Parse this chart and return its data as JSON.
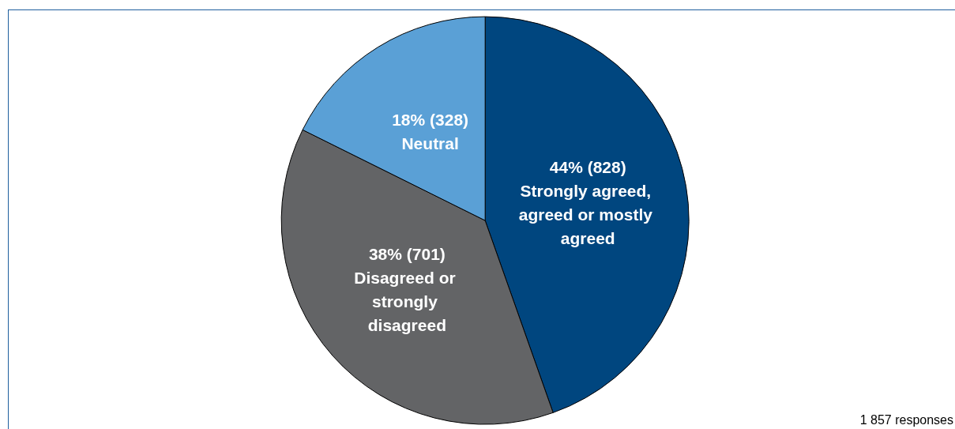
{
  "chart_data": {
    "type": "pie",
    "categories": [
      "Strongly agreed, agreed or mostly agreed",
      "Disagreed or strongly disagreed",
      "Neutral"
    ],
    "values": [
      828,
      701,
      328
    ],
    "value_labels": [
      "44% (828)",
      "38% (701)",
      "18% (328)"
    ],
    "colors": [
      "#00467f",
      "#636466",
      "#5aa0d6"
    ],
    "annotations": [
      "1 857 responses"
    ],
    "legend": false
  }
}
